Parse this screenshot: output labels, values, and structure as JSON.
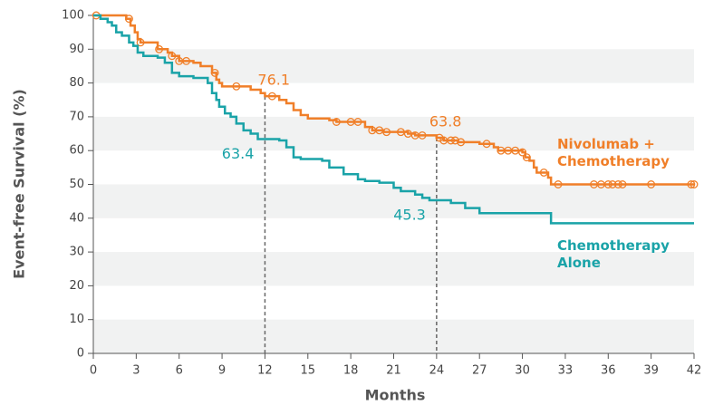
{
  "chart_data": {
    "type": "line",
    "step": "post",
    "bands": true,
    "xlabel": "Months",
    "ylabel": "Event-free Survival (%)",
    "xlim": [
      0,
      42
    ],
    "xticks": [
      0,
      3,
      6,
      9,
      12,
      15,
      18,
      21,
      24,
      27,
      30,
      33,
      36,
      39,
      42
    ],
    "ylim": [
      0,
      100
    ],
    "yticks": [
      0,
      10,
      20,
      30,
      40,
      50,
      60,
      70,
      80,
      90,
      100
    ],
    "series": [
      {
        "name": "Nivolumab + Chemotherapy",
        "color": "#f07f29",
        "x": [
          0,
          2.3,
          2.6,
          2.9,
          3.1,
          3.3,
          4.5,
          5.2,
          5.5,
          6,
          7,
          7.5,
          8.3,
          8.6,
          8.8,
          9,
          11,
          11.7,
          12,
          13,
          13.5,
          14,
          14.5,
          15,
          16.5,
          17,
          19,
          19.5,
          20.3,
          22,
          22.5,
          24,
          24.5,
          25.5,
          27,
          28,
          28.3,
          30,
          30.2,
          30.5,
          30.8,
          31,
          31.8,
          32,
          42
        ],
        "values": [
          100,
          99,
          97,
          95,
          93,
          92,
          90,
          89,
          88,
          86.5,
          86,
          85,
          83,
          81,
          80,
          79,
          78,
          77,
          76.1,
          75,
          74,
          72,
          70.5,
          69.5,
          69,
          68.5,
          67,
          66,
          65.5,
          65,
          64.5,
          63.8,
          63,
          62.5,
          62,
          61,
          60,
          59.5,
          58,
          57,
          55,
          53.5,
          52,
          50,
          50
        ],
        "censored": [
          0.2,
          2.5,
          3.3,
          4.6,
          5.5,
          6,
          6.5,
          8.5,
          10,
          12.5,
          17,
          18,
          18.5,
          19.5,
          20,
          20.5,
          21.5,
          22,
          22.5,
          23,
          24.2,
          24.5,
          25,
          25.3,
          25.7,
          27.5,
          28.5,
          29,
          29.5,
          30,
          30.3,
          31.5,
          32.5,
          35,
          35.5,
          36,
          36.3,
          36.7,
          37,
          39,
          41.8,
          42
        ]
      },
      {
        "name": "Chemotherapy Alone",
        "color": "#1aa3a8",
        "x": [
          0,
          0.5,
          1,
          1.3,
          1.6,
          2,
          2.5,
          2.8,
          3.1,
          3.5,
          4.5,
          5,
          5.5,
          6,
          7,
          8,
          8.3,
          8.6,
          8.8,
          9.2,
          9.6,
          10,
          10.5,
          11,
          11.5,
          13,
          13.5,
          14,
          14.5,
          16,
          16.5,
          17.5,
          18.5,
          19,
          20,
          21,
          21.5,
          22.5,
          23,
          23.5,
          25,
          26,
          27,
          31.5,
          32,
          42
        ],
        "values": [
          100,
          99,
          98,
          97,
          95,
          94,
          92,
          91,
          89,
          88,
          87.5,
          86,
          83,
          82,
          81.5,
          80,
          77,
          75,
          73,
          71,
          70,
          68,
          66,
          65,
          63.4,
          63,
          61,
          58,
          57.5,
          57,
          55,
          53,
          51.5,
          51,
          50.5,
          49,
          48,
          47,
          46,
          45.3,
          44.5,
          43,
          41.5,
          41.5,
          38.5,
          38.5
        ]
      }
    ],
    "annotations": [
      {
        "x": 12,
        "y": 76.1,
        "series": 0,
        "text": "76.1"
      },
      {
        "x": 12,
        "y": 63.4,
        "series": 1,
        "text": "63.4"
      },
      {
        "x": 24,
        "y": 63.8,
        "series": 0,
        "text": "63.8"
      },
      {
        "x": 24,
        "y": 45.3,
        "series": 1,
        "text": "45.3"
      }
    ]
  }
}
